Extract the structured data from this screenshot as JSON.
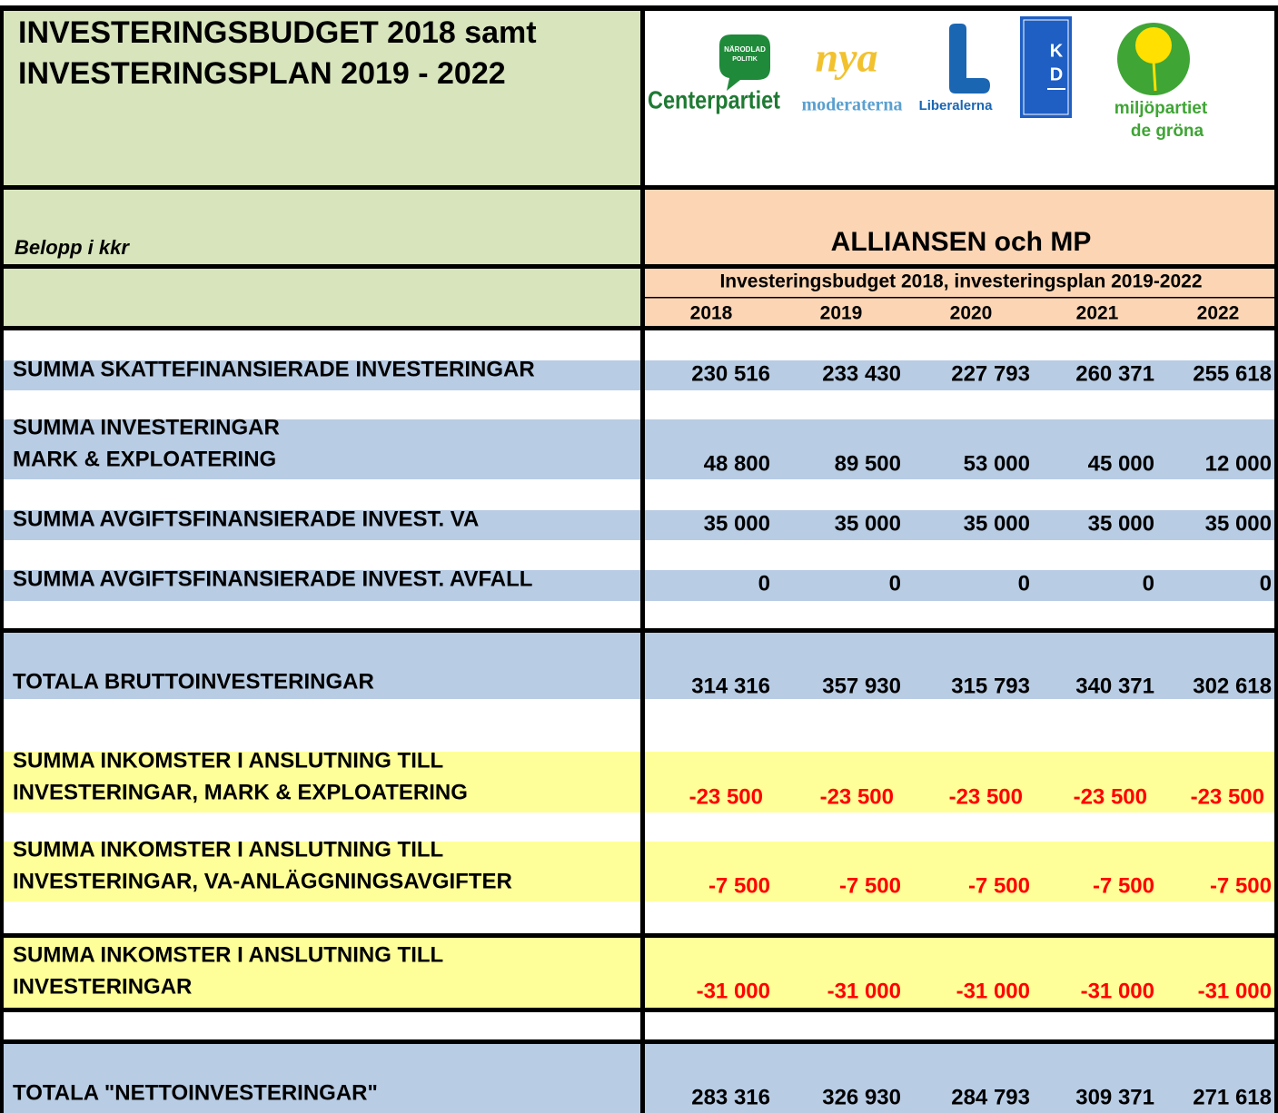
{
  "header": {
    "title": [
      "INVESTERINGSBUDGET 2018 samt",
      "INVESTERINGSPLAN 2019 - 2022"
    ],
    "logos": {
      "centerpartiet": {
        "badge": [
          "NÄRODLAD",
          "POLITIK"
        ],
        "name": "Centerpartiet"
      },
      "moderaterna": {
        "mark": "nya",
        "name": "moderaterna"
      },
      "liberalerna": {
        "name": "Liberalerna"
      },
      "kd": {
        "letters": [
          "K",
          "D"
        ]
      },
      "miljopartiet": {
        "name": [
          "miljöpartiet",
          "de gröna"
        ]
      }
    }
  },
  "unit_label": "Belopp i kkr",
  "group_title": "ALLIANSEN och MP",
  "subtitle": "Investeringsbudget 2018, investeringsplan 2019-2022",
  "years": [
    "2018",
    "2019",
    "2020",
    "2021",
    "2022"
  ],
  "rows": [
    {
      "label": [
        "SUMMA SKATTEFINANSIERADE INVESTERINGAR"
      ],
      "values": [
        "230 516",
        "233 430",
        "227 793",
        "260 371",
        "255 618"
      ]
    },
    {
      "label": [
        "SUMMA INVESTERINGAR",
        "MARK & EXPLOATERING"
      ],
      "values": [
        "48 800",
        "89 500",
        "53 000",
        "45 000",
        "12 000"
      ]
    },
    {
      "label": [
        "SUMMA AVGIFTSFINANSIERADE INVEST. VA"
      ],
      "values": [
        "35 000",
        "35 000",
        "35 000",
        "35 000",
        "35 000"
      ]
    },
    {
      "label": [
        "SUMMA AVGIFTSFINANSIERADE INVEST. AVFALL"
      ],
      "values": [
        "0",
        "0",
        "0",
        "0",
        "0"
      ]
    },
    {
      "label": [
        "TOTALA BRUTTOINVESTERINGAR"
      ],
      "values": [
        "314 316",
        "357 930",
        "315 793",
        "340 371",
        "302 618"
      ]
    },
    {
      "label": [
        "SUMMA INKOMSTER I ANSLUTNING TILL",
        "INVESTERINGAR, MARK & EXPLOATERING"
      ],
      "values": [
        "-23 500",
        "-23 500",
        "-23 500",
        "-23 500",
        "-23 500"
      ]
    },
    {
      "label": [
        "SUMMA INKOMSTER I ANSLUTNING TILL",
        "INVESTERINGAR, VA-ANLÄGGNINGSAVGIFTER"
      ],
      "values": [
        "-7 500",
        "-7 500",
        "-7 500",
        "-7 500",
        "-7 500"
      ]
    },
    {
      "label": [
        "SUMMA INKOMSTER I ANSLUTNING TILL",
        "INVESTERINGAR"
      ],
      "values": [
        "-31 000",
        "-31 000",
        "-31 000",
        "-31 000",
        "-31 000"
      ]
    },
    {
      "label": [
        "TOTALA \"NETTOINVESTERINGAR\""
      ],
      "values": [
        "283 316",
        "326 930",
        "284 793",
        "309 371",
        "271 618"
      ]
    }
  ]
}
